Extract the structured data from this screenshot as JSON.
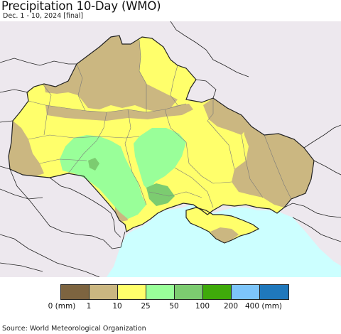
{
  "title": "Precipitation 10-Day (WMO)",
  "subtitle": "Dec. 1 - 10, 2024 [final]",
  "colors": {
    "land_outside": "#ede8ee",
    "sea": "#ccffff",
    "border": "#222222",
    "admin": "#7a7a7a"
  },
  "legend": {
    "swatches": [
      {
        "color": "#7d6440"
      },
      {
        "color": "#cbb781"
      },
      {
        "color": "#ffff6b"
      },
      {
        "color": "#99ff99"
      },
      {
        "color": "#7ccc70"
      },
      {
        "color": "#3faa0a"
      },
      {
        "color": "#7dc5fa"
      },
      {
        "color": "#1f78bc"
      }
    ],
    "ticks": [
      "0 (mm)",
      "1",
      "10",
      "25",
      "50",
      "100",
      "200",
      "400 (mm)"
    ]
  },
  "source": "Source: World Meteorological Organization"
}
